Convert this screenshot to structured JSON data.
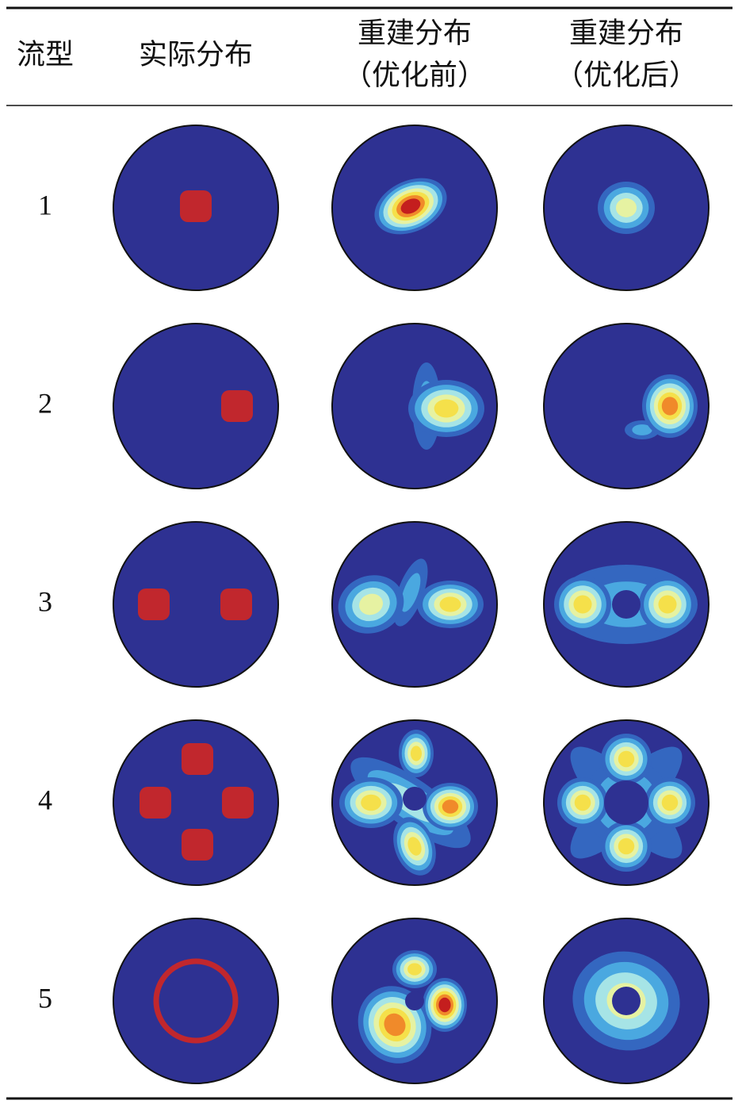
{
  "table": {
    "header": [
      [
        "流型"
      ],
      [
        "实际分布"
      ],
      [
        "重建分布",
        "（优化前）"
      ],
      [
        "重建分布",
        "（优化后）"
      ]
    ],
    "rows": [
      [
        "1"
      ],
      [
        "2"
      ],
      [
        "3"
      ],
      [
        "4"
      ],
      [
        "5"
      ]
    ]
  }
}
